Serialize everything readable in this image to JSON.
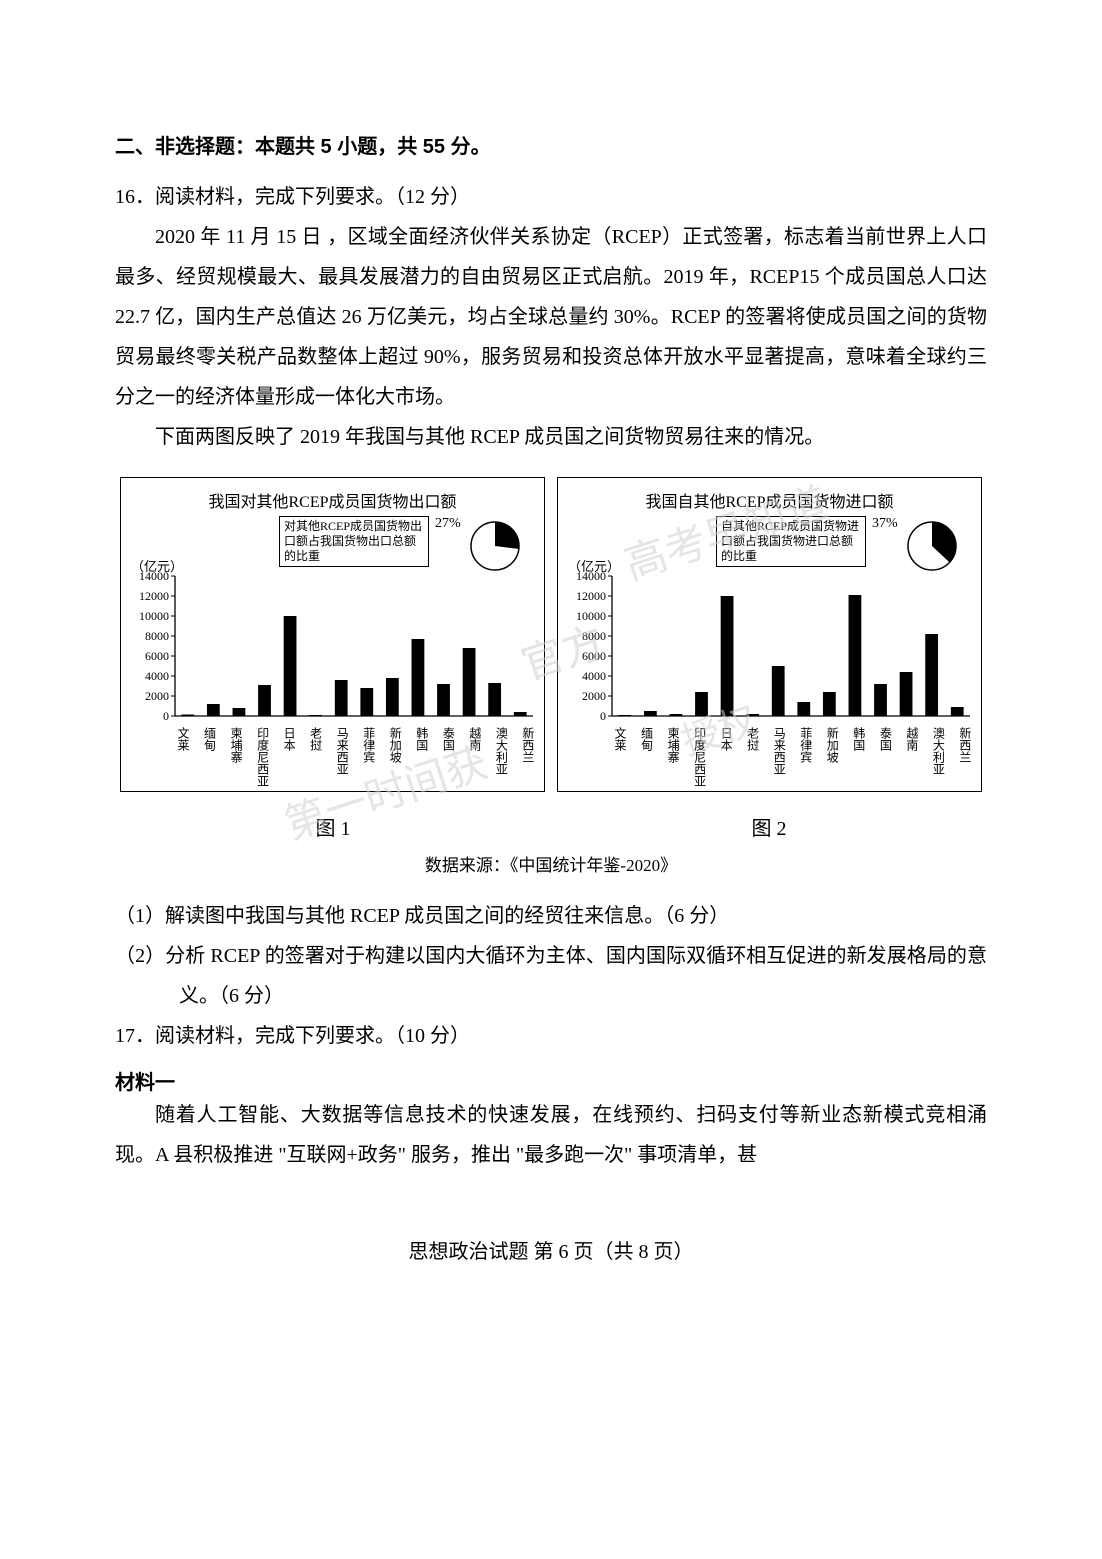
{
  "section_header": "二、非选择题：本题共 5 小题，共 55 分。",
  "q16": {
    "number_line": "16．阅读材料，完成下列要求。（12 分）",
    "para1": "2020 年 11 月 15 日 ，区域全面经济伙伴关系协定（RCEP）正式签署，标志着当前世界上人口最多、经贸规模最大、最具发展潜力的自由贸易区正式启航。2019 年，RCEP15 个成员国总人口达 22.7 亿，国内生产总值达 26 万亿美元，均占全球总量约 30%。RCEP 的签署将使成员国之间的货物贸易最终零关税产品数整体上超过 90%，服务贸易和投资总体开放水平显著提高，意味着全球约三分之一的经济体量形成一体化大市场。",
    "para2": "下面两图反映了 2019 年我国与其他 RCEP 成员国之间货物贸易往来的情况。",
    "sub1": "（1）解读图中我国与其他 RCEP 成员国之间的经贸往来信息。（6 分）",
    "sub2": "（2）分析 RCEP 的签署对于构建以国内大循环为主体、国内国际双循环相互促进的新发展格局的意义。（6 分）"
  },
  "chart1": {
    "title": "我国对其他RCEP成员国货物出口额",
    "legend": "对其他RCEP成员国货物出口额占我国货物出口总额的比重",
    "pie_pct_label": "27%",
    "pie_pct_value": 27,
    "pie_remainder": 73,
    "pie_colors": {
      "slice": "#000000",
      "remainder": "#ffffff",
      "stroke": "#000000"
    },
    "y_unit": "（亿元）",
    "y_ticks": [
      0,
      2000,
      4000,
      6000,
      8000,
      10000,
      12000,
      14000
    ],
    "ylim": [
      0,
      14000
    ],
    "type": "bar",
    "bar_color": "#000000",
    "axis_color": "#000000",
    "background_color": "#ffffff",
    "bar_width": 0.5,
    "label_fontsize": 12,
    "categories": [
      "文莱",
      "缅甸",
      "柬埔寨",
      "印度尼西亚",
      "日本",
      "老挝",
      "马来西亚",
      "菲律宾",
      "新加坡",
      "韩国",
      "泰国",
      "越南",
      "澳大利亚",
      "新西兰"
    ],
    "values": [
      150,
      1200,
      800,
      3100,
      10000,
      100,
      3600,
      2800,
      3800,
      7700,
      3200,
      6800,
      3300,
      400
    ]
  },
  "chart2": {
    "title": "我国自其他RCEP成员国货物进口额",
    "legend": "自其他RCEP成员国货物进口额占我国货物进口总额的比重",
    "pie_pct_label": "37%",
    "pie_pct_value": 37,
    "pie_remainder": 63,
    "pie_colors": {
      "slice": "#000000",
      "remainder": "#ffffff",
      "stroke": "#000000"
    },
    "y_unit": "（亿元）",
    "y_ticks": [
      0,
      2000,
      4000,
      6000,
      8000,
      10000,
      12000,
      14000
    ],
    "ylim": [
      0,
      14000
    ],
    "type": "bar",
    "bar_color": "#000000",
    "axis_color": "#000000",
    "background_color": "#ffffff",
    "bar_width": 0.5,
    "label_fontsize": 12,
    "categories": [
      "文莱",
      "缅甸",
      "柬埔寨",
      "印度尼西亚",
      "日本",
      "老挝",
      "马来西亚",
      "菲律宾",
      "新加坡",
      "韩国",
      "泰国",
      "越南",
      "澳大利亚",
      "新西兰"
    ],
    "values": [
      100,
      500,
      200,
      2400,
      12000,
      200,
      5000,
      1400,
      2400,
      12100,
      3200,
      4400,
      8200,
      900
    ]
  },
  "fig_labels": {
    "fig1": "图 1",
    "fig2": "图 2"
  },
  "data_source": "数据来源：《中国统计年鉴-2020》",
  "q17": {
    "number_line": "17．阅读材料，完成下列要求。（10 分）",
    "material_label": "材料一",
    "para1": "随着人工智能、大数据等信息技术的快速发展，在线预约、扫码支付等新业态新模式竞相涌现。A 县积极推进 \"互联网+政务\" 服务，推出 \"最多跑一次\" 事项清单，甚"
  },
  "footer": "思想政治试题  第 6 页（共 8 页）",
  "watermarks": {
    "w1": "高考早知道",
    "w2": "官方",
    "w3": "授权",
    "w4": "第一时间获"
  },
  "watermark_style": {
    "color": "#d0d0d0",
    "opacity": 0.55,
    "rotate_deg": -18,
    "fontsize": 42
  }
}
